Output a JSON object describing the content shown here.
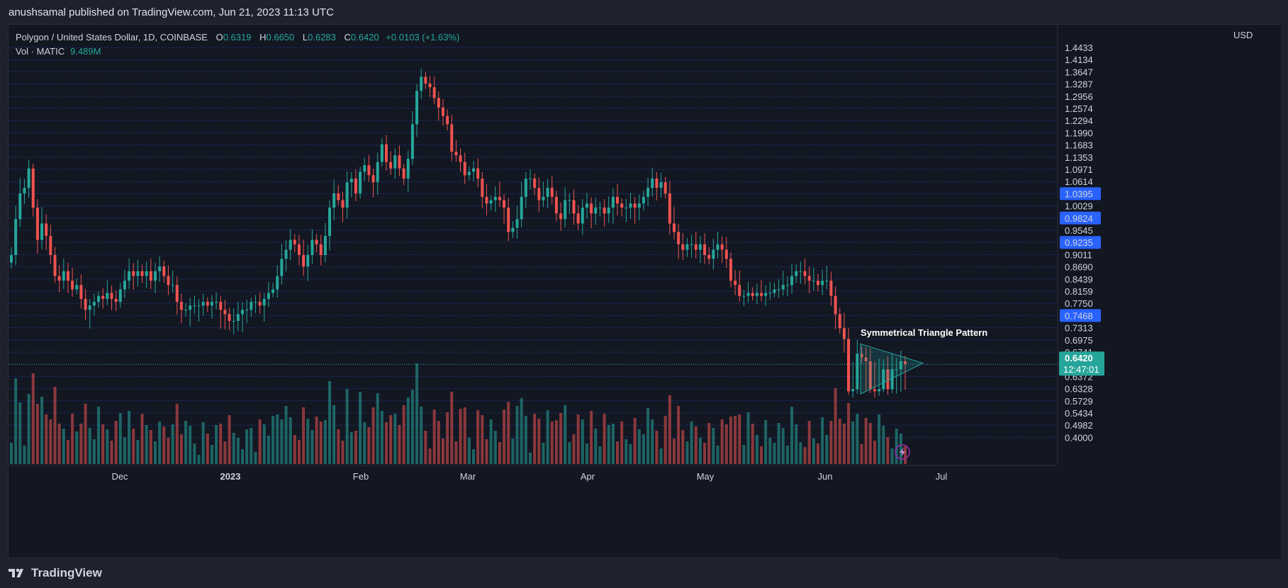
{
  "publisher": "anushsamal published on TradingView.com, Jun 21, 2023 11:13 UTC",
  "legend": {
    "symbol": "Polygon / United States Dollar, 1D, COINBASE",
    "o_label": "O",
    "o_value": "0.6319",
    "h_label": "H",
    "h_value": "0.6650",
    "l_label": "L",
    "l_value": "0.6283",
    "c_label": "C",
    "c_value": "0.6420",
    "change": "+0.0103 (+1.63%)",
    "vol_label": "Vol · MATIC",
    "vol_value": "9.489M"
  },
  "currency": "USD",
  "brand": "TradingView",
  "colors": {
    "up": "#26a69a",
    "down": "#ef5350",
    "grid": "#2962ff",
    "badge": "#2962ff",
    "background": "#131722",
    "pattern": "#26a69a"
  },
  "chart_data": {
    "type": "candlestick",
    "title": "Polygon / United States Dollar, 1D, COINBASE",
    "x_labels": [
      "Dec",
      "2023",
      "Feb",
      "Mar",
      "Apr",
      "May",
      "Jun",
      "Jul"
    ],
    "y_ticks": [
      "1.4433",
      "1.4134",
      "1.3647",
      "1.3287",
      "1.2956",
      "1.2574",
      "1.2294",
      "1.1990",
      "1.1683",
      "1.1353",
      "1.0971",
      "1.0614",
      "1.0395",
      "1.0029",
      "0.9824",
      "0.9545",
      "0.9235",
      "0.9011",
      "0.8690",
      "0.8439",
      "0.8159",
      "0.7750",
      "0.7468",
      "0.7313",
      "0.6975",
      "0.6741",
      "0.6420",
      "0.6372",
      "0.6328",
      "0.5729",
      "0.5434",
      "0.4982",
      "0.4000"
    ],
    "highlighted_ticks": [
      "1.0395",
      "0.9824",
      "0.9235",
      "0.7468"
    ],
    "last_price": "0.6420",
    "countdown": "12:47:01",
    "annotation": "Symmetrical Triangle Pattern",
    "close_series": [
      0.9,
      0.98,
      1.04,
      1.05,
      1.1,
      1.0,
      0.93,
      0.97,
      0.94,
      0.9,
      0.85,
      0.84,
      0.86,
      0.84,
      0.82,
      0.83,
      0.79,
      0.76,
      0.77,
      0.78,
      0.8,
      0.79,
      0.81,
      0.79,
      0.78,
      0.82,
      0.84,
      0.86,
      0.85,
      0.86,
      0.85,
      0.86,
      0.84,
      0.86,
      0.87,
      0.85,
      0.83,
      0.83,
      0.78,
      0.76,
      0.76,
      0.77,
      0.77,
      0.77,
      0.78,
      0.77,
      0.78,
      0.78,
      0.76,
      0.75,
      0.74,
      0.74,
      0.75,
      0.76,
      0.76,
      0.78,
      0.78,
      0.77,
      0.79,
      0.81,
      0.82,
      0.85,
      0.89,
      0.91,
      0.93,
      0.92,
      0.9,
      0.87,
      0.9,
      0.93,
      0.92,
      0.9,
      0.94,
      1.0,
      1.04,
      1.02,
      1.0,
      1.06,
      1.07,
      1.04,
      1.09,
      1.11,
      1.08,
      1.06,
      1.12,
      1.17,
      1.12,
      1.1,
      1.14,
      1.1,
      1.07,
      1.13,
      1.22,
      1.31,
      1.35,
      1.33,
      1.32,
      1.29,
      1.26,
      1.24,
      1.22,
      1.15,
      1.14,
      1.12,
      1.08,
      1.09,
      1.1,
      1.07,
      1.03,
      1.01,
      1.02,
      1.03,
      1.02,
      1.0,
      0.95,
      0.96,
      0.98,
      1.03,
      1.07,
      1.07,
      1.05,
      1.02,
      1.03,
      1.05,
      1.03,
      0.99,
      0.98,
      1.02,
      1.02,
      0.99,
      0.97,
      1.0,
      1.01,
      0.99,
      1.0,
      1.0,
      0.99,
      1.0,
      1.03,
      1.01,
      1.0,
      1.0,
      1.01,
      1.0,
      1.01,
      1.03,
      1.05,
      1.07,
      1.05,
      1.06,
      1.04,
      0.97,
      0.95,
      0.92,
      0.91,
      0.92,
      0.92,
      0.91,
      0.92,
      0.9,
      0.89,
      0.91,
      0.92,
      0.91,
      0.89,
      0.84,
      0.83,
      0.8,
      0.8,
      0.81,
      0.8,
      0.81,
      0.8,
      0.81,
      0.81,
      0.82,
      0.82,
      0.83,
      0.83,
      0.85,
      0.86,
      0.86,
      0.85,
      0.84,
      0.84,
      0.83,
      0.84,
      0.84,
      0.8,
      0.75,
      0.73,
      0.7,
      0.62,
      0.63,
      0.67,
      0.66,
      0.65,
      0.63,
      0.62,
      0.63,
      0.64,
      0.63,
      0.64,
      0.64,
      0.65,
      0.642
    ]
  }
}
